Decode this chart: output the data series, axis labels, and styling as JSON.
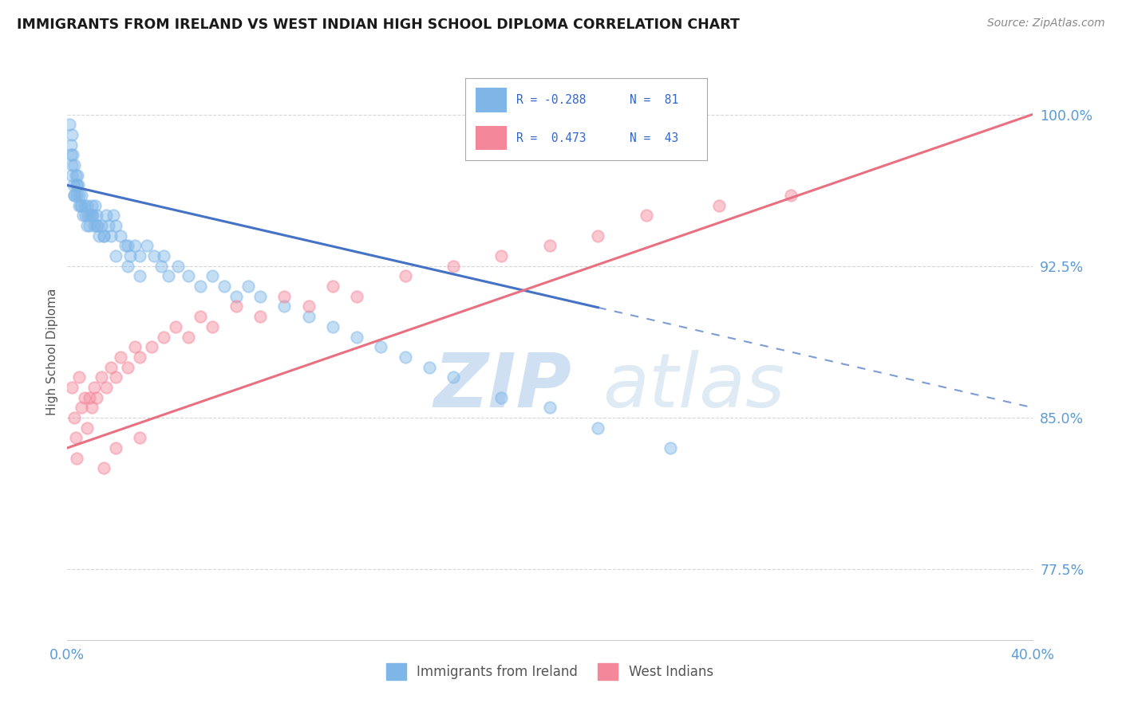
{
  "title": "IMMIGRANTS FROM IRELAND VS WEST INDIAN HIGH SCHOOL DIPLOMA CORRELATION CHART",
  "source": "Source: ZipAtlas.com",
  "ylabel": "High School Diploma",
  "yticks": [
    77.5,
    85.0,
    92.5,
    100.0
  ],
  "ytick_labels": [
    "77.5%",
    "85.0%",
    "92.5%",
    "100.0%"
  ],
  "xmin": 0.0,
  "xmax": 40.0,
  "ymin": 74.0,
  "ymax": 102.5,
  "ireland_color": "#7EB6E8",
  "westindian_color": "#F4879A",
  "ireland_line_color": "#4472C4",
  "westindian_line_color": "#E87080",
  "axis_label_color": "#5B9BD5",
  "grid_color": "#CCCCCC",
  "watermark_color": "#C8DCF0",
  "ireland_x": [
    0.1,
    0.15,
    0.18,
    0.2,
    0.22,
    0.25,
    0.28,
    0.3,
    0.35,
    0.38,
    0.4,
    0.42,
    0.45,
    0.5,
    0.55,
    0.6,
    0.65,
    0.7,
    0.75,
    0.8,
    0.85,
    0.9,
    0.95,
    1.0,
    1.05,
    1.1,
    1.15,
    1.2,
    1.25,
    1.3,
    1.4,
    1.5,
    1.6,
    1.7,
    1.8,
    1.9,
    2.0,
    2.2,
    2.4,
    2.6,
    2.8,
    3.0,
    3.3,
    3.6,
    3.9,
    4.2,
    4.6,
    5.0,
    5.5,
    6.0,
    6.5,
    7.0,
    7.5,
    8.0,
    9.0,
    10.0,
    11.0,
    12.0,
    13.0,
    14.0,
    15.0,
    16.0,
    18.0,
    20.0,
    22.0,
    25.0,
    4.0,
    2.5,
    1.0,
    0.5,
    0.3,
    0.2,
    0.15,
    0.4,
    0.6,
    0.8,
    1.2,
    1.5,
    2.0,
    2.5,
    3.0
  ],
  "ireland_y": [
    99.5,
    98.5,
    99.0,
    97.0,
    98.0,
    96.5,
    97.5,
    96.0,
    97.0,
    96.5,
    96.0,
    97.0,
    96.5,
    96.0,
    95.5,
    96.0,
    95.0,
    95.5,
    95.0,
    95.5,
    95.0,
    94.5,
    95.0,
    95.5,
    95.0,
    94.5,
    95.5,
    95.0,
    94.5,
    94.0,
    94.5,
    94.0,
    95.0,
    94.5,
    94.0,
    95.0,
    94.5,
    94.0,
    93.5,
    93.0,
    93.5,
    93.0,
    93.5,
    93.0,
    92.5,
    92.0,
    92.5,
    92.0,
    91.5,
    92.0,
    91.5,
    91.0,
    91.5,
    91.0,
    90.5,
    90.0,
    89.5,
    89.0,
    88.5,
    88.0,
    87.5,
    87.0,
    86.0,
    85.5,
    84.5,
    83.5,
    93.0,
    93.5,
    95.0,
    95.5,
    96.0,
    97.5,
    98.0,
    96.5,
    95.5,
    94.5,
    94.5,
    94.0,
    93.0,
    92.5,
    92.0
  ],
  "westindian_x": [
    0.2,
    0.3,
    0.35,
    0.4,
    0.5,
    0.6,
    0.7,
    0.8,
    0.9,
    1.0,
    1.1,
    1.2,
    1.4,
    1.6,
    1.8,
    2.0,
    2.2,
    2.5,
    2.8,
    3.0,
    3.5,
    4.0,
    4.5,
    5.0,
    5.5,
    6.0,
    7.0,
    8.0,
    9.0,
    10.0,
    11.0,
    12.0,
    14.0,
    16.0,
    18.0,
    20.0,
    22.0,
    24.0,
    27.0,
    30.0,
    3.0,
    2.0,
    1.5
  ],
  "westindian_y": [
    86.5,
    85.0,
    84.0,
    83.0,
    87.0,
    85.5,
    86.0,
    84.5,
    86.0,
    85.5,
    86.5,
    86.0,
    87.0,
    86.5,
    87.5,
    87.0,
    88.0,
    87.5,
    88.5,
    88.0,
    88.5,
    89.0,
    89.5,
    89.0,
    90.0,
    89.5,
    90.5,
    90.0,
    91.0,
    90.5,
    91.5,
    91.0,
    92.0,
    92.5,
    93.0,
    93.5,
    94.0,
    95.0,
    95.5,
    96.0,
    84.0,
    83.5,
    82.5
  ],
  "ireland_line_x0": 0.0,
  "ireland_line_x1": 40.0,
  "ireland_line_y0": 96.5,
  "ireland_line_y1": 85.5,
  "ireland_solid_xmax": 22.0,
  "westindian_line_y0": 83.5,
  "westindian_line_y1": 100.0
}
